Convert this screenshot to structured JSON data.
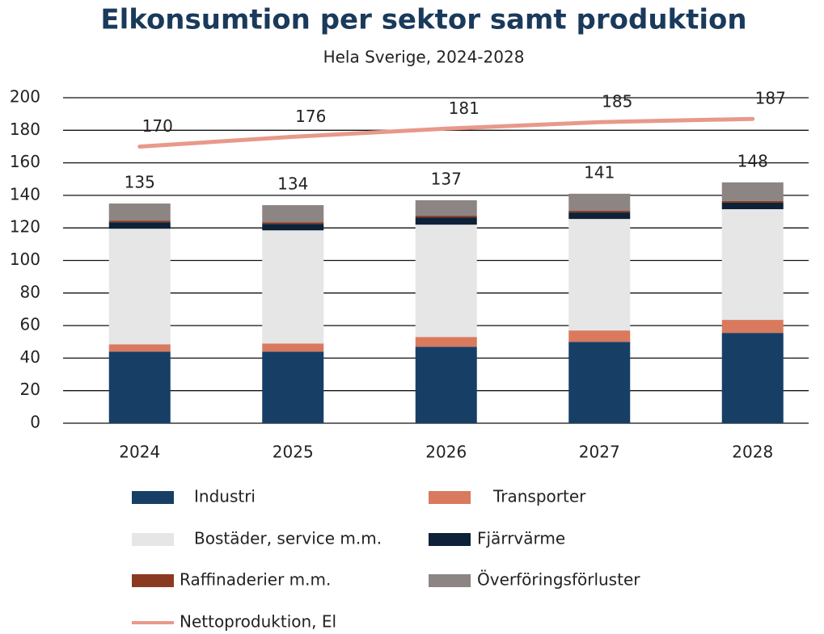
{
  "chart_data": {
    "type": "stacked-bar-line",
    "title": "Elkonsumtion per sektor samt produktion",
    "subtitle": "Hela Sverige, 2024-2028",
    "categories": [
      "2024",
      "2025",
      "2026",
      "2027",
      "2028"
    ],
    "series": [
      {
        "name": "Industri",
        "color": "#173f66",
        "values": [
          44,
          44,
          47,
          50,
          55.5
        ]
      },
      {
        "name": "Transporter",
        "color": "#d97a5e",
        "values": [
          4.5,
          5,
          6,
          7,
          8
        ]
      },
      {
        "name": "Bostäder, service m.m.",
        "color": "#e6e6e6",
        "values": [
          71,
          69.5,
          69,
          68.5,
          68
        ]
      },
      {
        "name": "Fjärrvärme",
        "color": "#0d2238",
        "values": [
          4,
          4,
          4.5,
          4,
          4
        ]
      },
      {
        "name": "Raffinaderier m.m.",
        "color": "#8b3a22",
        "values": [
          1,
          1,
          1,
          1,
          1
        ]
      },
      {
        "name": "Överföringsförluster",
        "color": "#8c8584",
        "values": [
          10.5,
          10.5,
          9.5,
          10.5,
          11.5
        ]
      }
    ],
    "totals": [
      135,
      134,
      137,
      141,
      148
    ],
    "line": {
      "name": "Nettoproduktion, El",
      "color": "#e8998a",
      "values": [
        170,
        176,
        181,
        185,
        187
      ]
    },
    "ylim": [
      0,
      200
    ],
    "yticks": [
      0,
      20,
      40,
      60,
      80,
      100,
      120,
      140,
      160,
      180,
      200
    ],
    "grid": true
  }
}
